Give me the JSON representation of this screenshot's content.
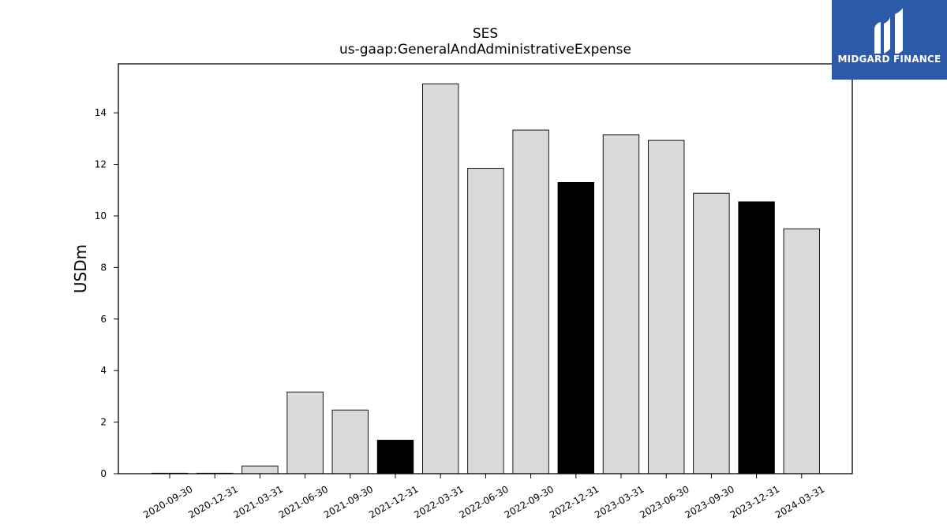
{
  "chart_data": {
    "type": "bar",
    "title": "SES",
    "subtitle": "us-gaap:GeneralAndAdministrativeExpense",
    "xlabel": "",
    "ylabel": "USDm",
    "categories": [
      "2020-09-30",
      "2020-12-31",
      "2021-03-31",
      "2021-06-30",
      "2021-09-30",
      "2021-12-31",
      "2022-03-31",
      "2022-06-30",
      "2022-09-30",
      "2022-12-31",
      "2023-03-31",
      "2023-06-30",
      "2023-09-30",
      "2023-12-31",
      "2024-03-31"
    ],
    "values": [
      0.02,
      0.02,
      0.3,
      3.17,
      2.47,
      1.3,
      15.12,
      11.85,
      13.33,
      11.3,
      13.15,
      12.93,
      10.88,
      10.55,
      9.5
    ],
    "highlight": [
      false,
      false,
      false,
      false,
      false,
      true,
      false,
      false,
      false,
      true,
      false,
      false,
      false,
      true,
      false
    ],
    "colors": {
      "normal": "#d9d9d9",
      "highlight": "#000000",
      "edge": "#000000"
    },
    "ylim": [
      0,
      15.9
    ],
    "yticks": [
      0,
      2,
      4,
      6,
      8,
      10,
      12,
      14
    ],
    "grid": false,
    "legend": "none"
  },
  "logo": {
    "text": "MIDGARD FINANCE",
    "background": "#2c5aa8",
    "icon": "midgard-logo-icon"
  }
}
